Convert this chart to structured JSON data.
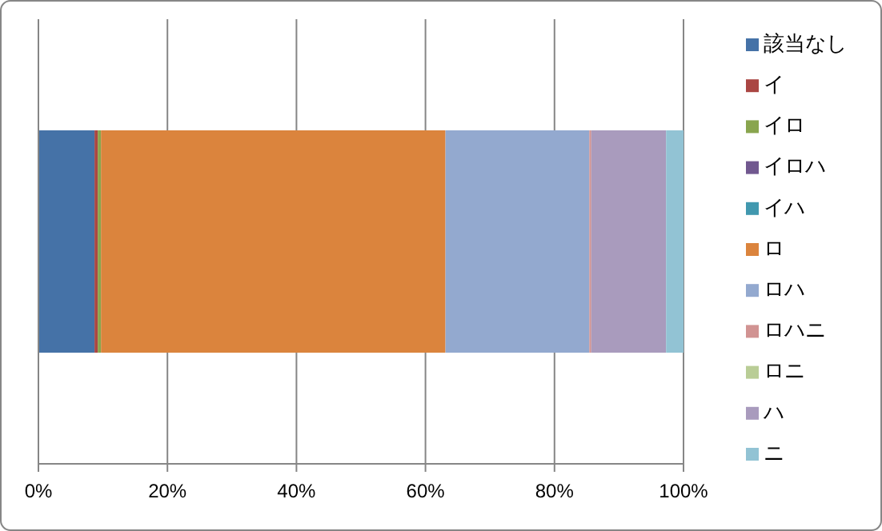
{
  "chart_data": {
    "type": "bar",
    "orientation": "horizontal",
    "stacked": true,
    "categories": [
      null
    ],
    "series": [
      {
        "name": "該当なし",
        "color": "#4572a7",
        "values": [
          8.7
        ]
      },
      {
        "name": "イ",
        "color": "#aa4643",
        "values": [
          0.5
        ]
      },
      {
        "name": "イロ",
        "color": "#89a54e",
        "values": [
          0.5
        ]
      },
      {
        "name": "イロハ",
        "color": "#71588f",
        "values": [
          0
        ]
      },
      {
        "name": "イハ",
        "color": "#4198af",
        "values": [
          0
        ]
      },
      {
        "name": "ロ",
        "color": "#db843d",
        "values": [
          53.4
        ]
      },
      {
        "name": "ロハ",
        "color": "#93a9cf",
        "values": [
          22.3
        ]
      },
      {
        "name": "ロハニ",
        "color": "#d19392",
        "values": [
          0.3
        ]
      },
      {
        "name": "ロニ",
        "color": "#b9cd96",
        "values": [
          0
        ]
      },
      {
        "name": "ハ",
        "color": "#a99bbd",
        "values": [
          11.6
        ]
      },
      {
        "name": "ニ",
        "color": "#92c3d4",
        "values": [
          2.7
        ]
      }
    ],
    "xlim": [
      0,
      100
    ],
    "xticks": [
      {
        "value": 0,
        "label": "0%"
      },
      {
        "value": 20,
        "label": "20%"
      },
      {
        "value": 40,
        "label": "40%"
      },
      {
        "value": 60,
        "label": "60%"
      },
      {
        "value": 80,
        "label": "80%"
      },
      {
        "value": 100,
        "label": "100%"
      }
    ],
    "grid": "x",
    "legend": "right"
  }
}
